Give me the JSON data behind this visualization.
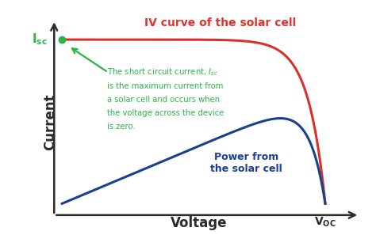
{
  "background_color": "#ffffff",
  "title": "IV curve of the solar cell",
  "title_color": "#e8302a",
  "title_fontsize": 10,
  "xlabel": "Voltage",
  "xlabel_fontsize": 12,
  "ylabel": "Current",
  "ylabel_fontsize": 12,
  "axis_color": "#2b2b2b",
  "isc_color": "#2db34a",
  "voc_color": "#2b2b2b",
  "iv_color": "#d9302a",
  "power_color": "#1a3f8f",
  "annotation_color": "#2db34a",
  "dot_color": "#2db34a",
  "annotation_lines": [
    "The short circuit current, IₛC",
    "is the maximum current from",
    "a solar cell and occurs when",
    "the voltage across the device",
    "is zero."
  ]
}
